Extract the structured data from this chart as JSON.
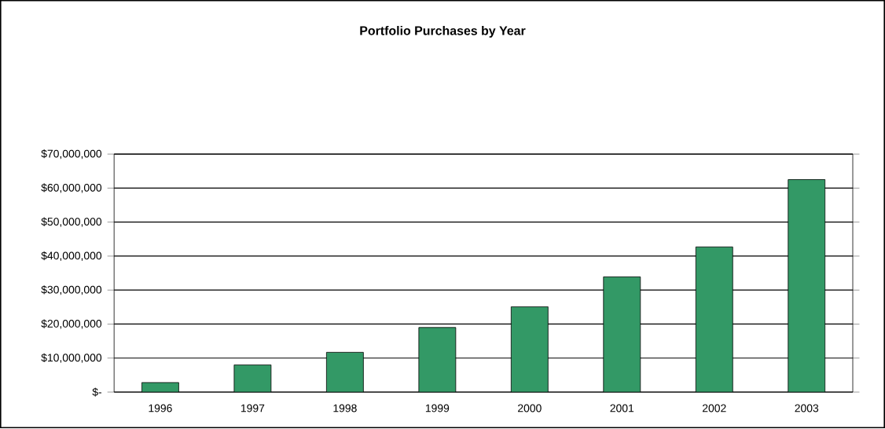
{
  "chart_data": {
    "type": "bar",
    "title": "Portfolio Purchases by Year",
    "categories": [
      "1996",
      "1997",
      "1998",
      "1999",
      "2000",
      "2001",
      "2002",
      "2003"
    ],
    "values": [
      2800000,
      8000000,
      11700000,
      19000000,
      25100000,
      33900000,
      42700000,
      62500000
    ],
    "color": "#339966",
    "ylim": [
      0,
      70000000
    ],
    "yticks": [
      {
        "value": 0,
        "label": "$-"
      },
      {
        "value": 10000000,
        "label": "$10,000,000"
      },
      {
        "value": 20000000,
        "label": "$20,000,000"
      },
      {
        "value": 30000000,
        "label": "$30,000,000"
      },
      {
        "value": 40000000,
        "label": "$40,000,000"
      },
      {
        "value": 50000000,
        "label": "$50,000,000"
      },
      {
        "value": 60000000,
        "label": "$60,000,000"
      },
      {
        "value": 70000000,
        "label": "$70,000,000"
      }
    ],
    "grid": "y"
  }
}
